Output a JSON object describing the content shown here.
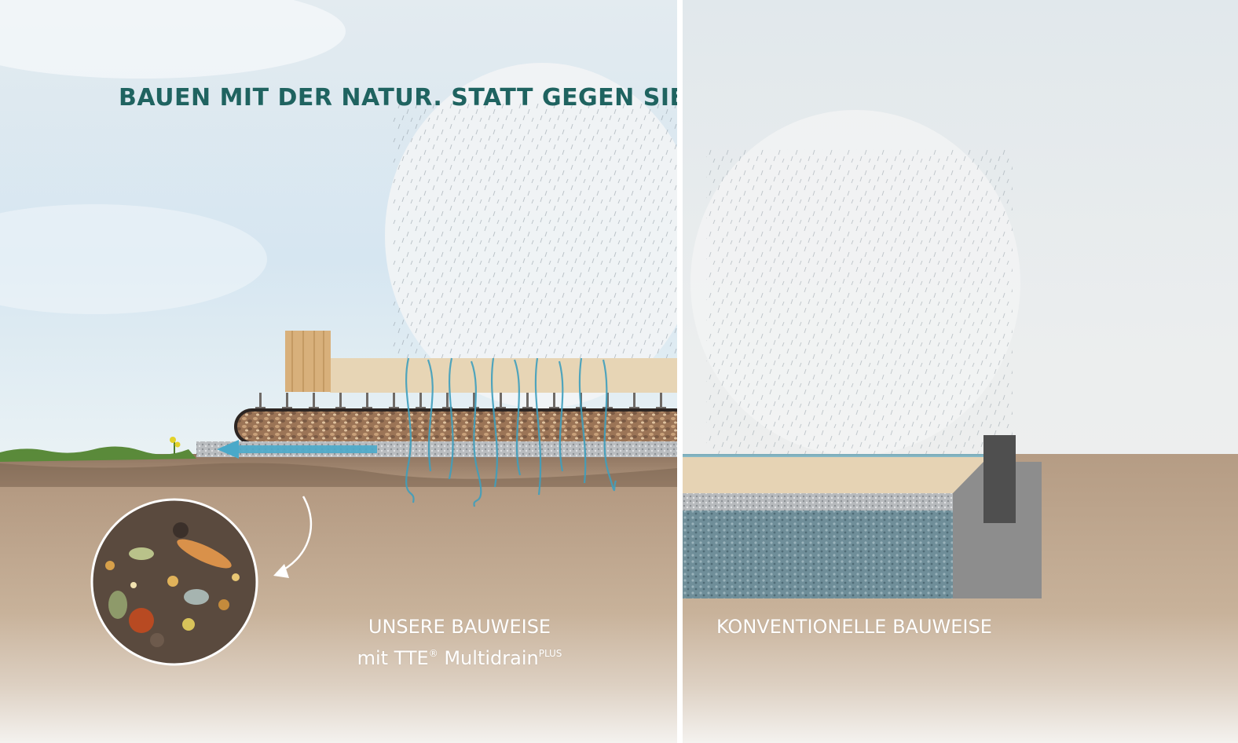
{
  "headline": "BAUEN MIT DER NATUR. STATT GEGEN SIE.",
  "left_panel": {
    "label_line1": "UNSERE BAUWEISE",
    "label_line2_prefix": "mit TTE",
    "label_line2_registered": "®",
    "label_line2_product": " Multidrain",
    "label_line2_superscript": "PLUS"
  },
  "right_panel": {
    "label": "KONVENTIONELLE BAUWEISE"
  },
  "colors": {
    "headline": "#1f6360",
    "sky_top": "#dfe9ef",
    "soil": "#bfa88e",
    "water": "#3f9fbd",
    "gravel_wet": "#7e9aa4",
    "concrete": "#8d8d8d"
  }
}
